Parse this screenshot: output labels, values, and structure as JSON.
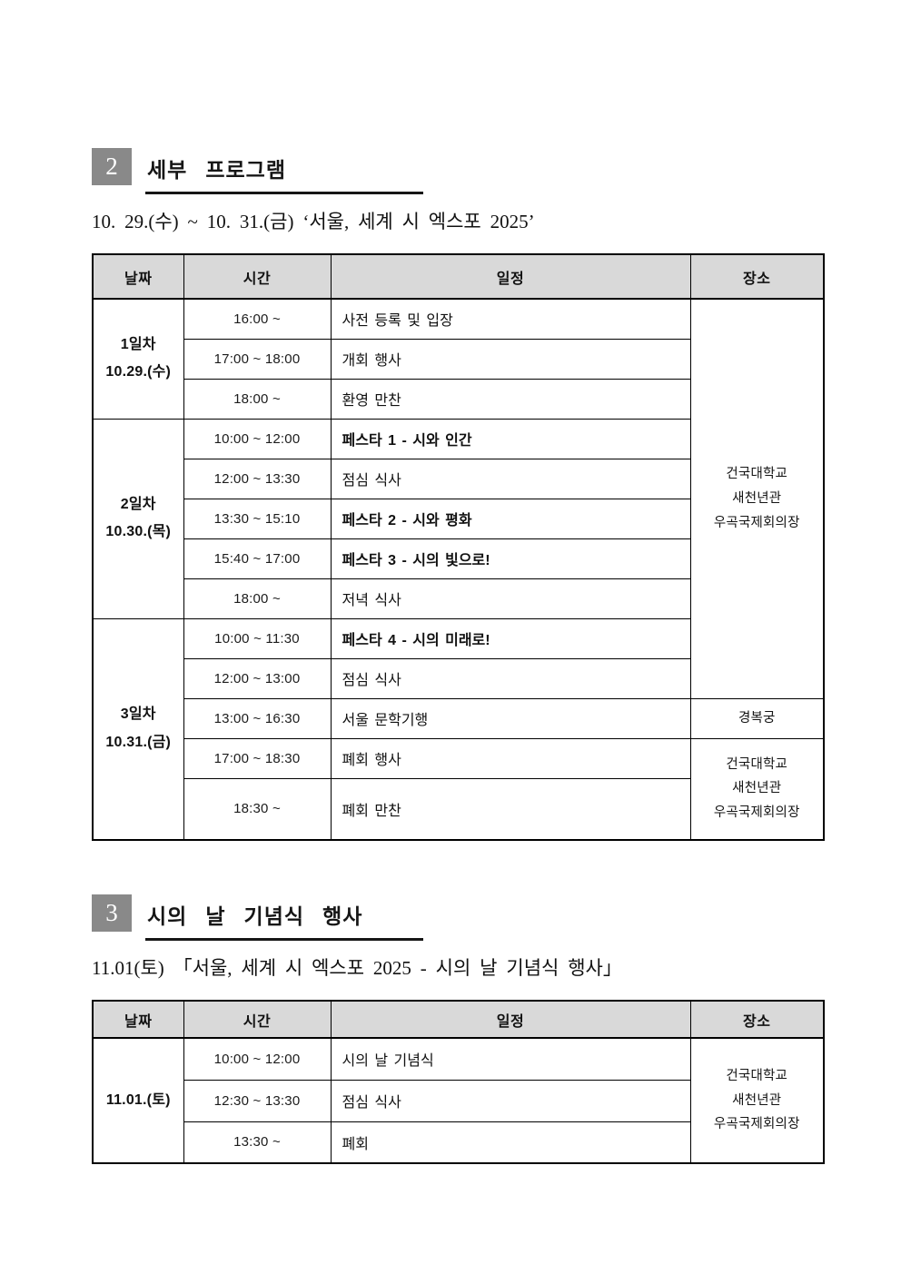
{
  "section2": {
    "number": "2",
    "title": "세부 프로그램",
    "subtitle": "10. 29.(수) ~ 10. 31.(금) ‘서울, 세계 시 엑스포 2025’"
  },
  "table_headers": {
    "date": "날짜",
    "time": "시간",
    "event": "일정",
    "place": "장소"
  },
  "program_table": {
    "day1_label": "1일차\n10.29.(수)",
    "day2_label": "2일차\n10.30.(목)",
    "day3_label": "3일차\n10.31.(금)",
    "venue_main": "건국대학교\n새천년관\n우곡국제회의장",
    "venue_palace": "경복궁",
    "venue_closing": "건국대학교\n새천년관\n우곡국제회의장",
    "rows": [
      {
        "time": "16:00 ~",
        "event": "사전 등록 및 입장"
      },
      {
        "time": "17:00 ~ 18:00",
        "event": "개회 행사"
      },
      {
        "time": "18:00 ~",
        "event": "환영 만찬"
      },
      {
        "time": "10:00 ~ 12:00",
        "event": "페스타 1 - 시와 인간"
      },
      {
        "time": "12:00 ~ 13:30",
        "event": "점심 식사"
      },
      {
        "time": "13:30 ~ 15:10",
        "event": "페스타 2 - 시와 평화"
      },
      {
        "time": "15:40 ~ 17:00",
        "event": "페스타 3 - 시의 빛으로!"
      },
      {
        "time": "18:00 ~",
        "event": "저녁 식사"
      },
      {
        "time": "10:00 ~ 11:30",
        "event": "페스타 4 - 시의 미래로!"
      },
      {
        "time": "12:00 ~ 13:00",
        "event": "점심 식사"
      },
      {
        "time": "13:00 ~ 16:30",
        "event": "서울 문학기행"
      },
      {
        "time": "17:00 ~ 18:30",
        "event": "폐회 행사"
      },
      {
        "time": "18:30 ~",
        "event": "폐회 만찬"
      }
    ]
  },
  "section3": {
    "number": "3",
    "title": "시의 날 기념식 행사",
    "subtitle": "11.01(토) 「서울, 세계 시 엑스포 2025 - 시의 날 기념식 행사」"
  },
  "ceremony_table": {
    "day_label": "11.01.(토)",
    "venue_main": "건국대학교\n새천년관\n우곡국제회의장",
    "rows": [
      {
        "time": "10:00 ~ 12:00",
        "event": "시의 날 기념식"
      },
      {
        "time": "12:30 ~ 13:30",
        "event": "점심 식사"
      },
      {
        "time": "13:30 ~",
        "event": "폐회"
      }
    ]
  }
}
